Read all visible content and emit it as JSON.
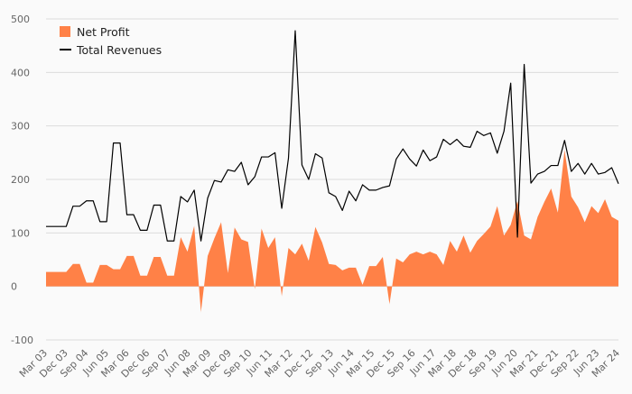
{
  "chart_data": {
    "type": "area",
    "title": "",
    "xlabel": "",
    "ylabel": "",
    "ylim": [
      -100,
      500
    ],
    "y_ticks": [
      -100,
      0,
      100,
      200,
      300,
      400,
      500
    ],
    "grid": "horizontal",
    "legend_position": "top-left",
    "x_tick_labels": [
      "Mar 03",
      "Dec 03",
      "Sep 04",
      "Jun 05",
      "Mar 06",
      "Dec 06",
      "Sep 07",
      "Jun 08",
      "Mar 09",
      "Dec 09",
      "Sep 10",
      "Jun 11",
      "Mar 12",
      "Dec 12",
      "Sep 13",
      "Jun 14",
      "Mar 15",
      "Dec 15",
      "Sep 16",
      "Jun 17",
      "Mar 18",
      "Dec 18",
      "Sep 19",
      "Jun 20",
      "Mar 21",
      "Dec 21",
      "Sep 22",
      "Jun 23",
      "Mar 24"
    ],
    "series": [
      {
        "name": "Net Profit",
        "type": "area",
        "color": "#ff8147",
        "values": [
          27,
          27,
          27,
          27,
          42,
          42,
          7,
          7,
          40,
          40,
          32,
          32,
          57,
          57,
          20,
          20,
          55,
          55,
          20,
          20,
          92,
          65,
          113,
          -48,
          57,
          90,
          120,
          25,
          110,
          88,
          83,
          -5,
          108,
          72,
          92,
          -18,
          72,
          60,
          80,
          48,
          111,
          82,
          42,
          40,
          30,
          35,
          35,
          3,
          38,
          38,
          55,
          -33,
          52,
          45,
          60,
          65,
          60,
          65,
          60,
          40,
          85,
          65,
          95,
          63,
          85,
          98,
          112,
          150,
          95,
          115,
          160,
          95,
          88,
          130,
          158,
          183,
          138,
          255,
          168,
          148,
          120,
          150,
          137,
          163,
          130,
          123
        ]
      },
      {
        "name": "Total Revenues",
        "type": "line",
        "color": "#000000",
        "values": [
          112,
          112,
          112,
          112,
          150,
          150,
          160,
          160,
          121,
          121,
          268,
          268,
          134,
          134,
          105,
          105,
          152,
          152,
          85,
          85,
          168,
          158,
          180,
          85,
          165,
          198,
          195,
          218,
          215,
          232,
          190,
          205,
          242,
          242,
          250,
          146,
          240,
          478,
          227,
          200,
          248,
          240,
          175,
          168,
          142,
          178,
          160,
          190,
          180,
          180,
          185,
          188,
          238,
          257,
          238,
          225,
          255,
          235,
          242,
          275,
          265,
          275,
          262,
          260,
          290,
          282,
          287,
          249,
          290,
          380,
          92,
          415,
          193,
          210,
          215,
          226,
          226,
          273,
          215,
          230,
          210,
          230,
          210,
          213,
          222,
          192
        ]
      }
    ]
  }
}
